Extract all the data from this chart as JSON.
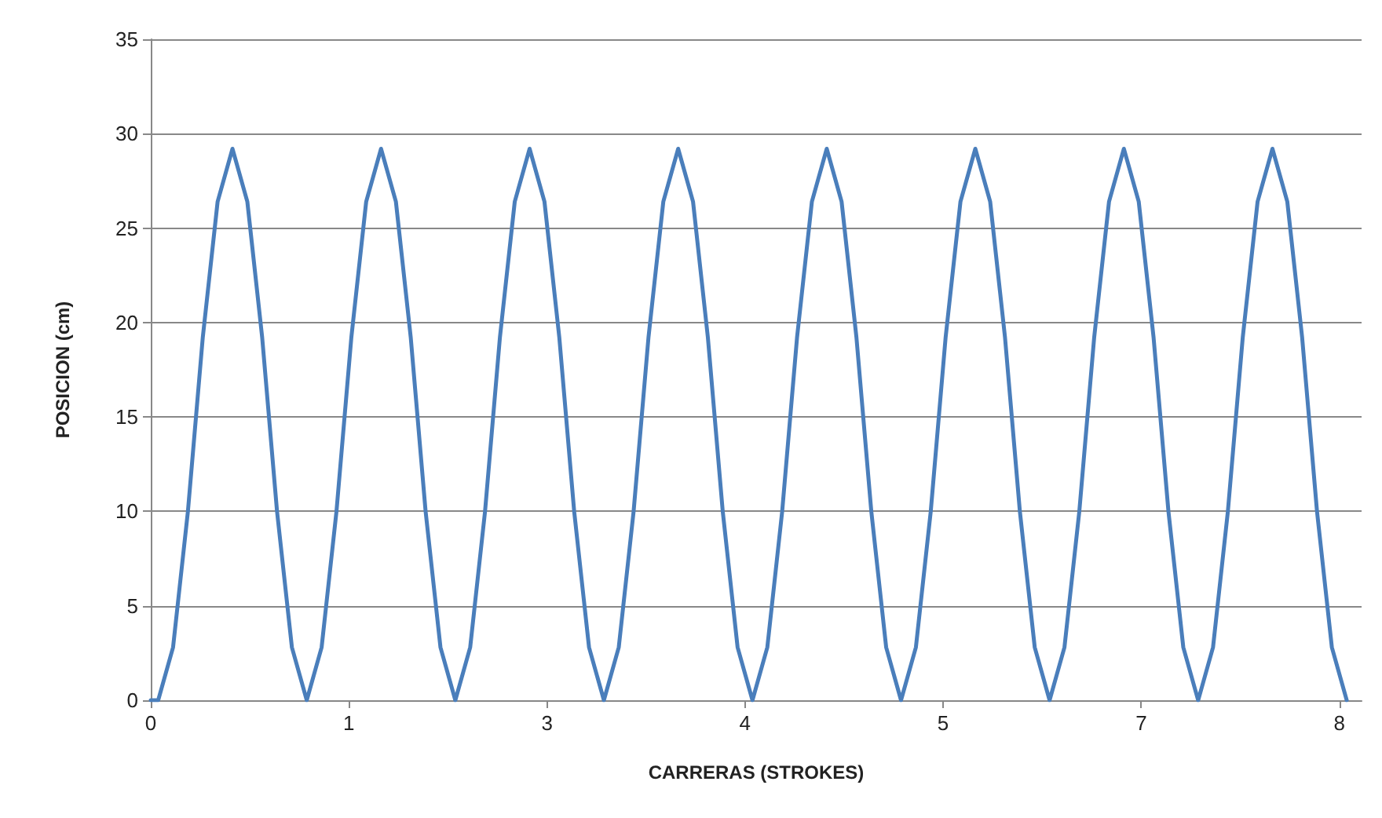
{
  "chart_data": {
    "type": "line",
    "xlabel": "CARRERAS (STROKES)",
    "ylabel": "POSICION (cm)",
    "xlim": [
      0,
      8.15
    ],
    "xticks": [
      0,
      {
        "value": 1.333,
        "label": "1"
      },
      {
        "value": 2.667,
        "label": "3"
      },
      4,
      {
        "value": 5.333,
        "label": "5"
      },
      {
        "value": 6.667,
        "label": "7"
      },
      8
    ],
    "ylim": [
      0,
      35
    ],
    "yticks": [
      0,
      5,
      10,
      15,
      20,
      25,
      30,
      35
    ],
    "grid": "y",
    "marker": "none",
    "line_style": "solid",
    "series": [
      {
        "color": "#4a7ebb",
        "x": [
          0,
          0.05,
          0.15,
          0.25,
          0.35,
          0.45,
          0.55,
          0.65,
          0.75,
          0.85,
          0.95,
          1.05,
          1.15,
          1.25,
          1.35,
          1.45,
          1.55,
          1.65,
          1.75,
          1.85,
          1.95,
          2.05,
          2.15,
          2.25,
          2.35,
          2.45,
          2.55,
          2.65,
          2.75,
          2.85,
          2.95,
          3.05,
          3.15,
          3.25,
          3.35,
          3.45,
          3.55,
          3.65,
          3.75,
          3.85,
          3.95,
          4.05,
          4.15,
          4.25,
          4.35,
          4.45,
          4.55,
          4.65,
          4.75,
          4.85,
          4.95,
          5.05,
          5.15,
          5.25,
          5.35,
          5.45,
          5.55,
          5.65,
          5.75,
          5.85,
          5.95,
          6.05,
          6.15,
          6.25,
          6.35,
          6.45,
          6.55,
          6.65,
          6.75,
          6.85,
          6.95,
          7.05,
          7.15,
          7.25,
          7.35,
          7.45,
          7.55,
          7.65,
          7.75,
          7.85,
          7.95,
          8.05
        ],
        "values": [
          0,
          0,
          2.8,
          10,
          19.2,
          26.4,
          29.2,
          26.4,
          19.2,
          10,
          2.8,
          0,
          2.8,
          10,
          19.2,
          26.4,
          29.2,
          26.4,
          19.2,
          10,
          2.8,
          0,
          2.8,
          10,
          19.2,
          26.4,
          29.2,
          26.4,
          19.2,
          10,
          2.8,
          0,
          2.8,
          10,
          19.2,
          26.4,
          29.2,
          26.4,
          19.2,
          10,
          2.8,
          0,
          2.8,
          10,
          19.2,
          26.4,
          29.2,
          26.4,
          19.2,
          10,
          2.8,
          0,
          2.8,
          10,
          19.2,
          26.4,
          29.2,
          26.4,
          19.2,
          10,
          2.8,
          0,
          2.8,
          10,
          19.2,
          26.4,
          29.2,
          26.4,
          19.2,
          10,
          2.8,
          0,
          2.8,
          10,
          19.2,
          26.4,
          29.2,
          26.4,
          19.2,
          10,
          2.8,
          0
        ]
      }
    ]
  }
}
